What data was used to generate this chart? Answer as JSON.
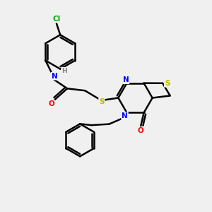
{
  "background_color": "#f0f0f0",
  "atom_colors": {
    "C": "#000000",
    "N": "#0000ff",
    "O": "#ff0000",
    "S": "#b8b800",
    "Cl": "#00aa00",
    "H": "#808080"
  },
  "bond_lw": 1.8,
  "figsize": [
    3.0,
    3.0
  ],
  "dpi": 100
}
